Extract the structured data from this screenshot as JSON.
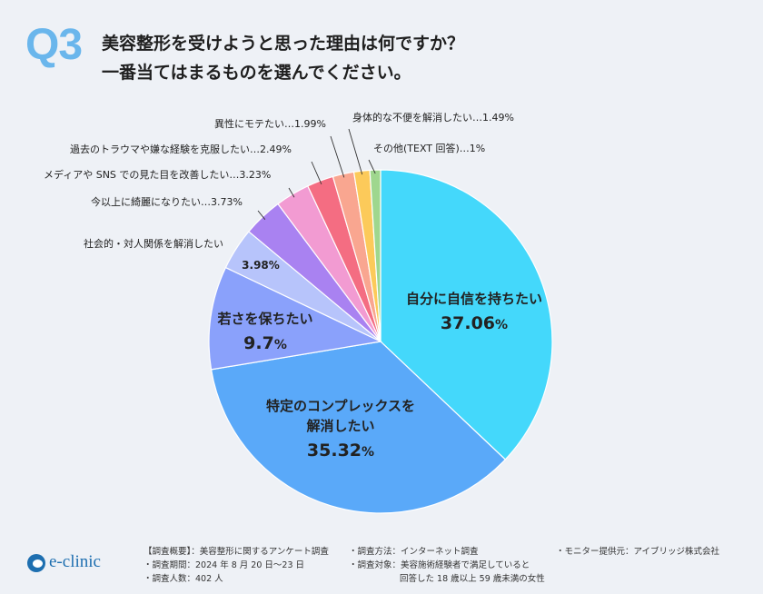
{
  "header": {
    "badge": "Q3",
    "title_line1": "美容整形を受けようと思った理由は何ですか？",
    "title_line2": "一番当てはまるものを選んでください。"
  },
  "chart_data": {
    "type": "pie",
    "start_angle_deg": 0,
    "direction": "clockwise",
    "unit": "%",
    "slices": [
      {
        "label": "自分に自信を持ちたい",
        "value": 37.06,
        "value_text": "37.06",
        "color": "#44d8fb",
        "label_mode": "inside"
      },
      {
        "label": "特定のコンプレックスを解消したい",
        "label_lines": [
          "特定のコンプレックスを",
          "解消したい"
        ],
        "value": 35.32,
        "value_text": "35.32",
        "color": "#5aa9f9",
        "label_mode": "inside"
      },
      {
        "label": "若さを保ちたい",
        "value": 9.7,
        "value_text": "9.7",
        "color": "#8aa1fb",
        "label_mode": "inside"
      },
      {
        "label": "社会的・対人関係を解消したい",
        "value": 3.98,
        "value_text": "3.98",
        "color": "#b7c4fb",
        "label_mode": "split"
      },
      {
        "label": "今以上に綺麗になりたい",
        "value": 3.73,
        "value_text": "3.73",
        "color": "#a982f1",
        "label_mode": "callout"
      },
      {
        "label": "メディアや SNS での見た目を改善したい",
        "value": 3.23,
        "value_text": "3.23",
        "color": "#f29bd2",
        "label_mode": "callout"
      },
      {
        "label": "過去のトラウマや嫌な経験を克服したい",
        "value": 2.49,
        "value_text": "2.49",
        "color": "#f46d82",
        "label_mode": "callout"
      },
      {
        "label": "異性にモテたい",
        "value": 1.99,
        "value_text": "1.99",
        "color": "#f9a690",
        "label_mode": "callout"
      },
      {
        "label": "身体的な不便を解消したい",
        "value": 1.49,
        "value_text": "1.49",
        "color": "#fcca5a",
        "label_mode": "callout"
      },
      {
        "label": "その他(TEXT 回答)",
        "value": 1,
        "value_text": "1",
        "color": "#9fd78e",
        "label_mode": "callout"
      }
    ]
  },
  "footer": {
    "logo_text": "e-clinic",
    "col1": [
      "【調査概要】：美容整形に関するアンケート調査",
      "・調査期間：2024 年 8 月 20 日～23 日",
      "・調査人数：402 人"
    ],
    "col2": [
      "・調査方法：インターネット調査",
      "・調査対象：美容施術経験者で満足していると",
      "回答した 18 歳以上 59 歳未満の女性"
    ],
    "col3": [
      "・モニター提供元：アイブリッジ株式会社"
    ]
  }
}
